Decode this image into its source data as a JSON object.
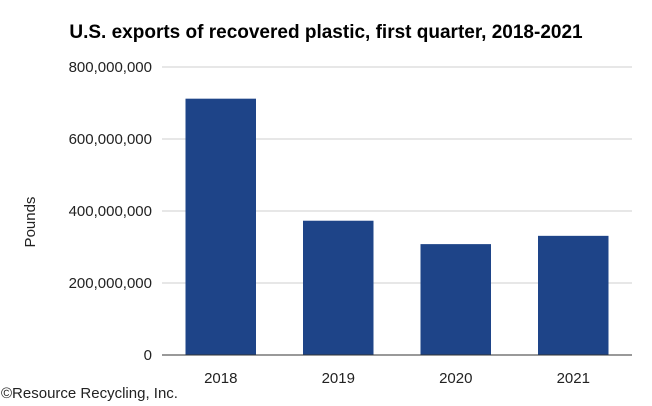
{
  "colors": {
    "bar": "#1e4488",
    "grid": "#cfcfcf",
    "axis": "#333333"
  },
  "footer": {
    "credit": "©Resource Recycling, Inc."
  },
  "chart_data": {
    "type": "bar",
    "title": "U.S. exports of recovered plastic, first quarter, 2018-2021",
    "xlabel": "",
    "ylabel": "Pounds",
    "categories": [
      "2018",
      "2019",
      "2020",
      "2021"
    ],
    "values": [
      712000000,
      373000000,
      308000000,
      331000000
    ],
    "ylim": [
      0,
      800000000
    ],
    "yticks": [
      0,
      200000000,
      400000000,
      600000000,
      800000000
    ],
    "ytick_labels": [
      "0",
      "200,000,000",
      "400,000,000",
      "600,000,000",
      "800,000,000"
    ],
    "grid": true,
    "legend": "none"
  }
}
